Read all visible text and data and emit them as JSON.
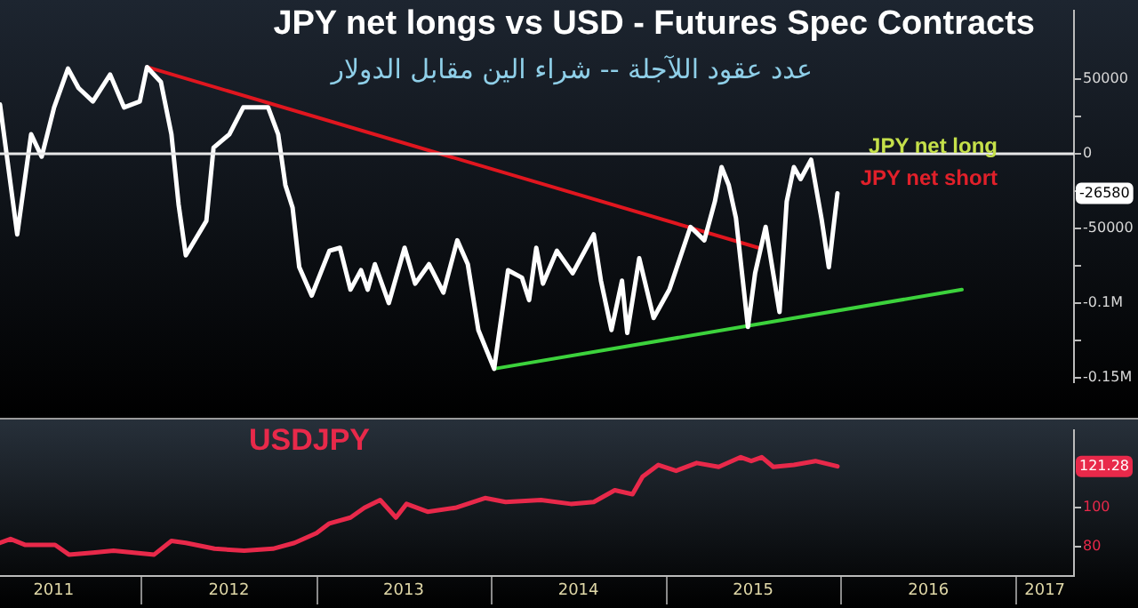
{
  "chart_data": [
    {
      "type": "line",
      "title": "JPY net longs vs USD - Futures Spec Contracts",
      "subtitle": "عدد عقود اللآجلة -- شراء الين مقابل الدولار",
      "annotations": [
        "JPY net long",
        "JPY net short",
        "-26580"
      ],
      "xlim": [
        "2011-03-11",
        "2017-05-01"
      ],
      "ylim": [
        -153000,
        96000
      ],
      "yticks": [
        50000,
        {
          "value": 25000,
          "label": null
        },
        0,
        {
          "value": -25000,
          "label": null
        },
        -50000,
        {
          "value": -75000,
          "label": null
        },
        {
          "value": -100000,
          "label": "-0.1M"
        },
        {
          "value": -125000,
          "label": null
        },
        {
          "value": -150000,
          "label": "-0.15M"
        }
      ],
      "tick_labels": "y",
      "grid": false,
      "legend": false,
      "ref_lines": [
        {
          "axis": "y",
          "value": 0,
          "color": "#e8e8e8"
        }
      ],
      "series": [
        {
          "color": "#ffffff",
          "x": [
            "2011-03-11",
            "2011-04-16",
            "2011-05-15",
            "2011-06-06",
            "2011-07-02",
            "2011-07-31",
            "2011-08-22",
            "2011-09-21",
            "2011-10-27",
            "2011-11-25",
            "2011-12-28",
            "2012-01-12",
            "2012-02-10",
            "2012-03-03",
            "2012-03-18",
            "2012-04-02",
            "2012-05-15",
            "2012-05-30",
            "2012-07-02",
            "2012-07-31",
            "2012-08-30",
            "2012-09-21",
            "2012-10-12",
            "2012-10-27",
            "2012-11-11",
            "2012-11-25",
            "2012-12-21",
            "2013-01-27",
            "2013-02-18",
            "2013-03-12",
            "2013-04-03",
            "2013-04-17",
            "2013-05-02",
            "2013-05-31",
            "2013-07-03",
            "2013-07-25",
            "2013-08-23",
            "2013-09-22",
            "2013-10-21",
            "2013-11-12",
            "2013-12-04",
            "2014-01-06",
            "2014-02-04",
            "2014-03-05",
            "2014-03-20",
            "2014-04-04",
            "2014-04-18",
            "2014-05-17",
            "2014-06-19",
            "2014-08-02",
            "2014-08-17",
            "2014-09-08",
            "2014-09-30",
            "2014-10-11",
            "2014-11-05",
            "2014-12-05",
            "2015-01-07",
            "2015-01-29",
            "2015-02-20",
            "2015-03-21",
            "2015-04-12",
            "2015-04-26",
            "2015-05-11",
            "2015-05-26",
            "2015-06-20",
            "2015-07-05",
            "2015-07-27",
            "2015-08-25",
            "2015-09-09",
            "2015-09-24",
            "2015-10-08",
            "2015-10-30",
            "2015-11-21",
            "2015-12-06",
            "2015-12-24"
          ],
          "values": [
            33000,
            -54000,
            13000,
            -2000,
            31000,
            57000,
            44000,
            35000,
            53000,
            31000,
            35000,
            58000,
            48000,
            13000,
            -34000,
            -68000,
            -45000,
            4000,
            13000,
            31000,
            31000,
            31000,
            13000,
            -21000,
            -36000,
            -76000,
            -95000,
            -65000,
            -63000,
            -91000,
            -78000,
            -91000,
            -74000,
            -100000,
            -63000,
            -87000,
            -74000,
            -93000,
            -58000,
            -74000,
            -118000,
            -144000,
            -78000,
            -83000,
            -98000,
            -63000,
            -87000,
            -65000,
            -80000,
            -54000,
            -85000,
            -118000,
            -85000,
            -120000,
            -70000,
            -110000,
            -91000,
            -70000,
            -49000,
            -58000,
            -32000,
            -9000,
            -21000,
            -43000,
            -116000,
            -80000,
            -49000,
            -106000,
            -32000,
            -9000,
            -17000,
            -4000,
            -44000,
            -76000,
            -26580
          ]
        },
        {
          "color": "#e0161f",
          "x": [
            "2012-01-12",
            "2015-07-12"
          ],
          "values": [
            58000,
            -63000
          ]
        },
        {
          "color": "#3cd23c",
          "x": [
            "2014-01-06",
            "2016-09-09"
          ],
          "values": [
            -144000,
            -91000
          ]
        }
      ]
    },
    {
      "type": "line",
      "annotations": [
        "121.28"
      ],
      "xlim": [
        "2011-03-11",
        "2017-05-01"
      ],
      "ylim": [
        65,
        140
      ],
      "yticks": [
        80,
        100
      ],
      "xticks": [
        {
          "value": "2011-07-01",
          "label": "2011"
        },
        {
          "value": "2012-01-01",
          "label": null
        },
        {
          "value": "2012-07-01",
          "label": "2012"
        },
        {
          "value": "2013-01-01",
          "label": null
        },
        {
          "value": "2013-07-01",
          "label": "2013"
        },
        {
          "value": "2014-01-01",
          "label": null
        },
        {
          "value": "2014-07-01",
          "label": "2014"
        },
        {
          "value": "2015-01-01",
          "label": null
        },
        {
          "value": "2015-07-01",
          "label": "2015"
        },
        {
          "value": "2016-01-01",
          "label": null
        },
        {
          "value": "2016-07-01",
          "label": "2016"
        },
        {
          "value": "2017-01-01",
          "label": null
        },
        {
          "value": "2017-03-01",
          "label": "2017"
        }
      ],
      "grid": false,
      "legend": false,
      "series": [
        {
          "name": "USDJPY",
          "color": "#e8294a",
          "x": [
            "2011-03-11",
            "2011-04-02",
            "2011-05-02",
            "2011-07-04",
            "2011-08-02",
            "2011-09-21",
            "2011-11-03",
            "2012-01-27",
            "2012-03-03",
            "2012-04-02",
            "2012-06-01",
            "2012-08-02",
            "2012-10-01",
            "2012-11-15",
            "2012-12-31",
            "2013-01-27",
            "2013-03-12",
            "2013-04-10",
            "2013-05-13",
            "2013-06-15",
            "2013-07-07",
            "2013-08-20",
            "2013-10-17",
            "2013-12-18",
            "2014-01-30",
            "2014-04-14",
            "2014-06-15",
            "2014-08-02",
            "2014-09-15",
            "2014-10-22",
            "2014-11-12",
            "2014-12-15",
            "2015-01-21",
            "2015-03-05",
            "2015-04-20",
            "2015-06-05",
            "2015-06-27",
            "2015-07-19",
            "2015-08-12",
            "2015-09-24",
            "2015-11-08",
            "2015-12-24"
          ],
          "values": [
            82,
            84,
            81,
            81,
            76,
            77,
            78,
            76,
            83,
            82,
            79,
            78,
            79,
            82,
            87,
            92,
            95,
            100,
            104,
            95,
            102,
            98,
            100,
            105,
            103,
            104,
            102,
            103,
            109,
            107,
            116,
            122,
            119,
            123,
            121,
            126,
            124,
            126,
            121,
            122,
            124,
            121.28
          ]
        }
      ]
    }
  ]
}
